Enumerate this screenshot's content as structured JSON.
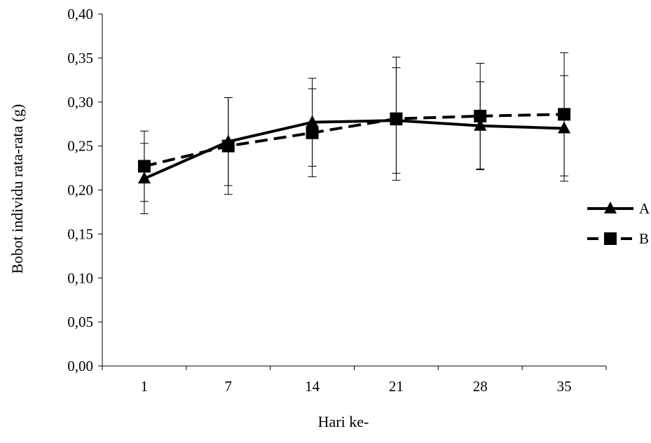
{
  "chart_data": {
    "type": "line",
    "xlabel": "Hari ke-",
    "ylabel": "Bobot individu rata-rata  (g)",
    "categories": [
      "1",
      "7",
      "14",
      "21",
      "28",
      "35"
    ],
    "y_ticks": [
      "0,00",
      "0,05",
      "0,10",
      "0,15",
      "0,20",
      "0,25",
      "0,30",
      "0,35",
      "0,40"
    ],
    "ylim": [
      0,
      0.4
    ],
    "grid": false,
    "legend_position": "right",
    "series": [
      {
        "name": "A",
        "marker": "triangle",
        "line_style": "solid",
        "color": "#000000",
        "values": [
          0.213,
          0.255,
          0.277,
          0.279,
          0.273,
          0.27
        ],
        "error": [
          0.04,
          0.05,
          0.05,
          0.06,
          0.05,
          0.06
        ]
      },
      {
        "name": "B",
        "marker": "square",
        "line_style": "dashed",
        "color": "#000000",
        "values": [
          0.227,
          0.25,
          0.265,
          0.281,
          0.284,
          0.286
        ],
        "error": [
          0.04,
          0.055,
          0.05,
          0.07,
          0.06,
          0.07
        ]
      }
    ]
  }
}
